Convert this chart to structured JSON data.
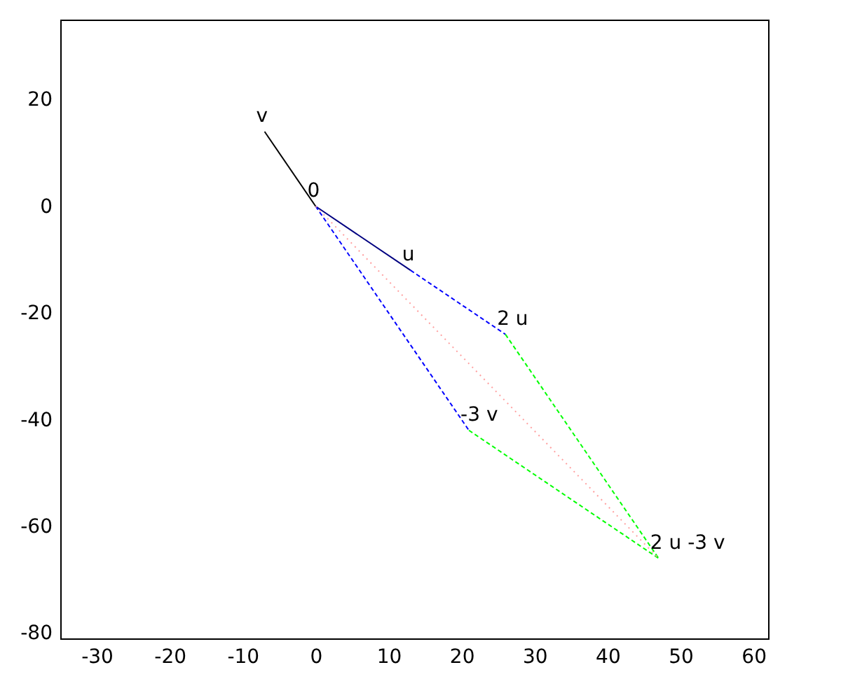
{
  "chart_data": {
    "type": "line",
    "xlim": [
      -35,
      62
    ],
    "ylim": [
      -81,
      35
    ],
    "xticks": [
      -30,
      -20,
      -10,
      0,
      10,
      20,
      30,
      40,
      50,
      60
    ],
    "yticks": [
      -80,
      -60,
      -40,
      -20,
      0,
      20
    ],
    "grid": false,
    "marker": "none",
    "series": [
      {
        "color": "#000000",
        "line_style": "solid",
        "x": [
          0,
          -7
        ],
        "values": [
          0,
          14
        ]
      },
      {
        "color": "#000080",
        "line_style": "solid",
        "x": [
          0,
          13
        ],
        "values": [
          0,
          -12
        ]
      },
      {
        "color": "#0000ff",
        "line_style": "dashed",
        "x": [
          13,
          26
        ],
        "values": [
          -12,
          -24
        ]
      },
      {
        "color": "#0000ff",
        "line_style": "dashed",
        "x": [
          0,
          21
        ],
        "values": [
          0,
          -42
        ]
      },
      {
        "color": "#00ff00",
        "line_style": "dashed",
        "x": [
          26,
          47
        ],
        "values": [
          -24,
          -66
        ]
      },
      {
        "color": "#00ff00",
        "line_style": "dashed",
        "x": [
          21,
          47
        ],
        "values": [
          -42,
          -66
        ]
      },
      {
        "color": "#ffa0a0",
        "line_style": "dotted",
        "x": [
          0,
          47
        ],
        "values": [
          0,
          -66
        ]
      }
    ],
    "annotations": [
      {
        "text": "0",
        "x": 0,
        "y": 0
      },
      {
        "text": "u",
        "x": 13,
        "y": -12
      },
      {
        "text": "v",
        "x": -7,
        "y": 14
      },
      {
        "text": "2 u",
        "x": 26,
        "y": -24
      },
      {
        "text": "-3 v",
        "x": 21,
        "y": -42
      },
      {
        "text": "2 u -3 v",
        "x": 47,
        "y": -66
      }
    ]
  }
}
